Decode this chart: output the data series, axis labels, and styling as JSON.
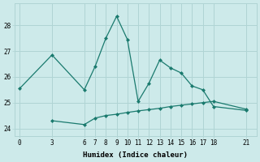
{
  "xlabel": "Humidex (Indice chaleur)",
  "bg_color": "#cdeaea",
  "grid_color": "#b0d4d4",
  "line_color": "#1a7a6e",
  "line1_x": [
    0,
    3,
    6,
    7,
    8,
    9,
    10,
    11,
    12,
    13,
    14,
    15,
    16,
    17,
    18,
    21
  ],
  "line1_y": [
    25.55,
    26.85,
    25.5,
    26.4,
    27.5,
    28.35,
    27.45,
    25.05,
    25.75,
    26.65,
    26.35,
    26.15,
    25.65,
    25.5,
    24.85,
    24.7
  ],
  "line2_x": [
    3,
    6,
    7,
    8,
    9,
    10,
    11,
    12,
    13,
    14,
    15,
    16,
    17,
    18,
    21
  ],
  "line2_y": [
    24.3,
    24.15,
    24.4,
    24.5,
    24.55,
    24.62,
    24.68,
    24.73,
    24.78,
    24.85,
    24.9,
    24.95,
    25.0,
    25.05,
    24.75
  ],
  "xlim": [
    -0.5,
    22
  ],
  "ylim": [
    23.7,
    28.85
  ],
  "yticks": [
    24,
    25,
    26,
    27,
    28
  ],
  "xticks": [
    0,
    3,
    6,
    7,
    8,
    9,
    10,
    11,
    12,
    13,
    14,
    15,
    16,
    17,
    18,
    21
  ],
  "tick_fontsize": 5.5,
  "label_fontsize": 6.5
}
